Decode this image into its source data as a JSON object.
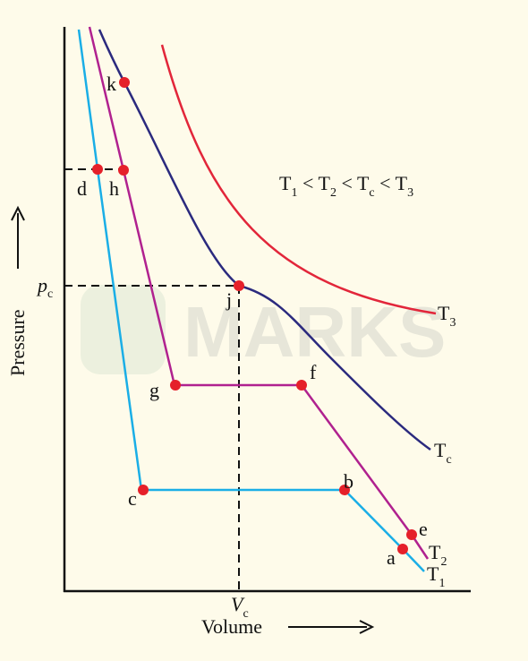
{
  "watermark": "MARKS",
  "axes": {
    "y_label": "Pressure",
    "x_label": "Volume",
    "p_c": {
      "main": "p",
      "sub": "c"
    },
    "v_c": {
      "main": "V",
      "sub": "c"
    }
  },
  "condition": {
    "terms": [
      {
        "main": "T",
        "sub": "1"
      },
      {
        "main": "T",
        "sub": "2"
      },
      {
        "main": "T",
        "sub": "c"
      },
      {
        "main": "T",
        "sub": "3"
      }
    ],
    "relation": "<"
  },
  "curves": [
    {
      "main": "T",
      "sub": "1"
    },
    {
      "main": "T",
      "sub": "2"
    },
    {
      "main": "T",
      "sub": "c"
    },
    {
      "main": "T",
      "sub": "3"
    }
  ],
  "points": [
    "a",
    "b",
    "c",
    "d",
    "e",
    "f",
    "g",
    "h",
    "j",
    "k"
  ]
}
